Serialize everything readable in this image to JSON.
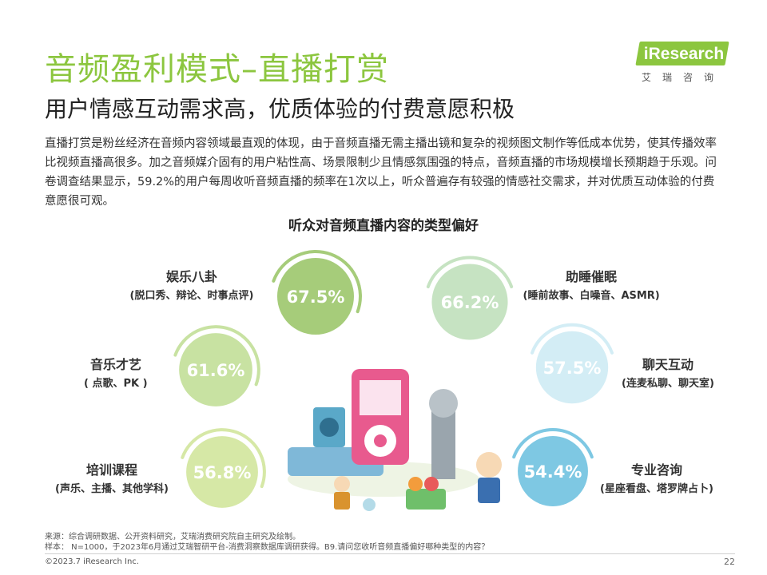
{
  "header": {
    "title": "音频盈利模式–直播打赏",
    "subtitle": "用户情感互动需求高，优质体验的付费意愿积极"
  },
  "logo": {
    "text": "iResearch",
    "cn": "艾瑞咨询",
    "color": "#8cc63f"
  },
  "intro": "直播打赏是粉丝经济在音频内容领域最直观的体现，由于音频直播无需主播出镜和复杂的视频图文制作等低成本优势，使其传播效率比视频直播高很多。加之音频媒介固有的用户粘性高、场景限制少且情感氛围强的特点，音频直播的市场规模增长预期趋于乐观。问卷调查结果显示，59.2%的用户每周收听音频直播的频率在1次以上，听众普遍存有较强的情感社交需求，并对优质互动体验的付费意愿很可观。",
  "chart_data": {
    "type": "bubble",
    "title": "听众对音频直播内容的类型偏好",
    "unit": "%",
    "categories": [
      {
        "name": "娱乐八卦",
        "detail": "(脱口秀、辩论、时事点评)",
        "value": 67.5,
        "color": "#a6cc7a"
      },
      {
        "name": "助睡催眠",
        "detail": "(睡前故事、白噪音、ASMR)",
        "value": 66.2,
        "color": "#c6e3c2"
      },
      {
        "name": "音乐才艺",
        "detail": "( 点歌、PK )",
        "value": 61.6,
        "color": "#c8e2a2"
      },
      {
        "name": "聊天互动",
        "detail": "(连麦私聊、聊天室)",
        "value": 57.5,
        "color": "#d3edf5"
      },
      {
        "name": "培训课程",
        "detail": "(声乐、主播、其他学科)",
        "value": 56.8,
        "color": "#d6e8a6"
      },
      {
        "name": "专业咨询",
        "detail": "(星座看盘、塔罗牌占卜)",
        "value": 54.4,
        "color": "#7ec8e3"
      }
    ]
  },
  "footer": {
    "source": "来源：综合调研数据、公开资料研究，艾瑞消费研究院自主研究及绘制。",
    "sample": "样本： N=1000，于2023年6月通过艾瑞智研平台-消费洞察数据库调研获得。B9.请问您收听音频直播偏好哪种类型的内容？",
    "copyright": "©2023.7 iResearch Inc.",
    "page": "22"
  }
}
